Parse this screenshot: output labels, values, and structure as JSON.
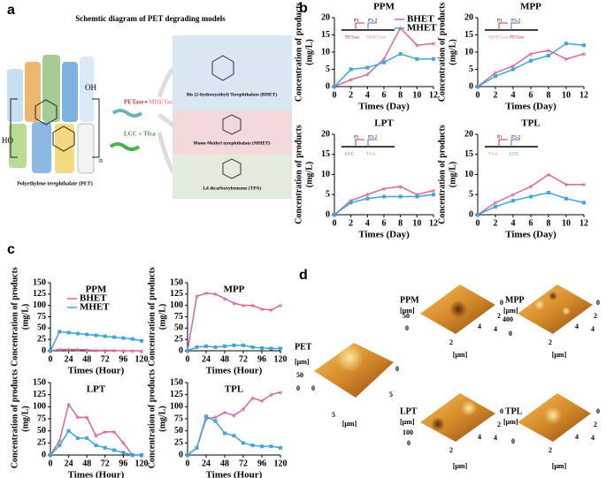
{
  "panel_labels": [
    "a",
    "b",
    "c",
    "d"
  ],
  "diagram": {
    "title": "Schemtic diagram of PET degrading models",
    "pet": "Polyethylene terephthalate (PET)",
    "enzymes_1": [
      "PETase",
      "+",
      "MHETase"
    ],
    "enzymes_2": "LCC + Tfca",
    "oh": "OH",
    "ho": "HO",
    "n": "n",
    "products": [
      "Bis (2-hydroxyethyl) Terephthalate (BHET)",
      "Mono-Methyl terephthalate (MHET)",
      "1,4 dicarboxybenzene (TPA)"
    ]
  },
  "chart_data": [
    {
      "type": "line",
      "title": "PPM",
      "xlabel": "Times (Day)",
      "ylabel": [
        "Concentration of products",
        "(mg/L)"
      ],
      "x": [
        0,
        2,
        4,
        6,
        8,
        10,
        12
      ],
      "xlim": [
        0,
        12
      ],
      "xticks": [
        0,
        2,
        4,
        6,
        8,
        10,
        12
      ],
      "ylim": [
        0,
        20
      ],
      "yticks": [
        0,
        5,
        10,
        15,
        20
      ],
      "legend": "upper right",
      "annotations": [
        "P1",
        "P3-2",
        "PETase",
        "MHETase"
      ],
      "series": [
        {
          "name": "BHET",
          "color": "#d6679a",
          "values": [
            0,
            2,
            3.5,
            8,
            17,
            12,
            12.5
          ]
        },
        {
          "name": "MHET",
          "color": "#3fa6dc",
          "values": [
            0,
            5,
            5.5,
            7,
            9.5,
            8,
            8
          ]
        }
      ]
    },
    {
      "type": "line",
      "title": "MPP",
      "xlabel": "Times (Day)",
      "ylabel": [
        "Concentration of products",
        "(mg/L)"
      ],
      "x": [
        0,
        2,
        4,
        6,
        8,
        10,
        12
      ],
      "xlim": [
        0,
        12
      ],
      "xticks": [
        0,
        2,
        4,
        6,
        8,
        10,
        12
      ],
      "ylim": [
        0,
        20
      ],
      "yticks": [
        0,
        5,
        10,
        15,
        20
      ],
      "annotations": [
        "P1",
        "P3-2",
        "MHETase",
        "PETase"
      ],
      "series": [
        {
          "name": "BHET",
          "color": "#d6679a",
          "values": [
            0,
            4,
            6,
            9.5,
            10.5,
            8,
            9.5
          ]
        },
        {
          "name": "MHET",
          "color": "#3fa6dc",
          "values": [
            0,
            3,
            5,
            7.5,
            9,
            12.5,
            12
          ]
        }
      ]
    },
    {
      "type": "line",
      "title": "LPT",
      "xlabel": "Times (Day)",
      "ylabel": [
        "Concentration of products",
        "(mg/L)"
      ],
      "x": [
        0,
        2,
        4,
        6,
        8,
        10,
        12
      ],
      "xlim": [
        0,
        12
      ],
      "xticks": [
        0,
        2,
        4,
        6,
        8,
        10,
        12
      ],
      "ylim": [
        0,
        20
      ],
      "yticks": [
        0,
        5,
        10,
        15,
        20
      ],
      "annotations": [
        "P1",
        "P3-2",
        "LCC",
        "Tfca"
      ],
      "series": [
        {
          "name": "BHET",
          "color": "#d6679a",
          "values": [
            0,
            3.5,
            5,
            6.5,
            7,
            5,
            6
          ]
        },
        {
          "name": "MHET",
          "color": "#3fa6dc",
          "values": [
            0,
            3,
            4,
            4.5,
            4.5,
            4.5,
            5
          ]
        }
      ]
    },
    {
      "type": "line",
      "title": "TPL",
      "xlabel": "Times (Day)",
      "ylabel": [
        "Concentration of products",
        "(mg/L)"
      ],
      "x": [
        0,
        2,
        4,
        6,
        8,
        10,
        12
      ],
      "xlim": [
        0,
        12
      ],
      "xticks": [
        0,
        2,
        4,
        6,
        8,
        10,
        12
      ],
      "ylim": [
        0,
        20
      ],
      "yticks": [
        0,
        5,
        10,
        15,
        20
      ],
      "annotations": [
        "P1",
        "P3-2",
        "Tfca",
        "LCC"
      ],
      "series": [
        {
          "name": "BHET",
          "color": "#d6679a",
          "values": [
            0,
            3,
            5,
            7,
            10,
            7.5,
            7.5
          ]
        },
        {
          "name": "MHET",
          "color": "#3fa6dc",
          "values": [
            0,
            2,
            3.5,
            4.5,
            5.5,
            4,
            3
          ]
        }
      ]
    },
    {
      "type": "line",
      "title": "PPM",
      "xlabel": "Times (Hour)",
      "ylabel": [
        "Concentration of products",
        "(mg/L)"
      ],
      "x": [
        0,
        12,
        24,
        36,
        48,
        60,
        72,
        84,
        96,
        108,
        120
      ],
      "xlim": [
        0,
        120
      ],
      "xticks": [
        0,
        24,
        48,
        72,
        96,
        120
      ],
      "ylim": [
        0,
        150
      ],
      "yticks": [
        0,
        25,
        50,
        75,
        100,
        125,
        150
      ],
      "legend": "upper right",
      "series": [
        {
          "name": "BHET",
          "color": "#d6679a",
          "values": [
            0,
            3,
            3,
            3,
            2,
            1,
            1,
            1,
            0,
            0,
            0
          ]
        },
        {
          "name": "MHET",
          "color": "#3fa6dc",
          "values": [
            0,
            42,
            40,
            38,
            36,
            34,
            32,
            30,
            28,
            26,
            22
          ]
        }
      ]
    },
    {
      "type": "line",
      "title": "MPP",
      "xlabel": "Times (Hour)",
      "ylabel": [
        "Concentration of products",
        "(mg/L)"
      ],
      "x": [
        0,
        12,
        24,
        36,
        48,
        60,
        72,
        84,
        96,
        108,
        120
      ],
      "xlim": [
        0,
        120
      ],
      "xticks": [
        0,
        24,
        48,
        72,
        96,
        120
      ],
      "ylim": [
        0,
        150
      ],
      "yticks": [
        0,
        25,
        50,
        75,
        100,
        125,
        150
      ],
      "series": [
        {
          "name": "BHET",
          "color": "#d6679a",
          "values": [
            0,
            120,
            127,
            125,
            115,
            105,
            100,
            100,
            92,
            90,
            100
          ]
        },
        {
          "name": "MHET",
          "color": "#3fa6dc",
          "values": [
            0,
            8,
            10,
            8,
            10,
            12,
            12,
            8,
            6,
            5,
            5
          ]
        }
      ]
    },
    {
      "type": "line",
      "title": "LPT",
      "xlabel": "Times (Hour)",
      "ylabel": [
        "Concentration of products",
        "(mg/L)"
      ],
      "x": [
        0,
        12,
        24,
        36,
        48,
        60,
        72,
        84,
        96,
        108,
        120
      ],
      "xlim": [
        0,
        120
      ],
      "xticks": [
        0,
        24,
        48,
        72,
        96,
        120
      ],
      "ylim": [
        0,
        150
      ],
      "yticks": [
        0,
        25,
        50,
        75,
        100,
        125,
        150
      ],
      "series": [
        {
          "name": "BHET",
          "color": "#d6679a",
          "values": [
            0,
            30,
            105,
            78,
            78,
            40,
            48,
            48,
            25,
            0,
            0
          ]
        },
        {
          "name": "MHET",
          "color": "#3fa6dc",
          "values": [
            0,
            20,
            50,
            35,
            35,
            20,
            15,
            10,
            5,
            0,
            0
          ]
        }
      ]
    },
    {
      "type": "line",
      "title": "TPL",
      "xlabel": "Times (Hour)",
      "ylabel": [
        "Concentration of products",
        "(mg/L)"
      ],
      "x": [
        0,
        12,
        24,
        36,
        48,
        60,
        72,
        84,
        96,
        108,
        120
      ],
      "xlim": [
        0,
        120
      ],
      "xticks": [
        0,
        24,
        48,
        72,
        96,
        120
      ],
      "ylim": [
        0,
        150
      ],
      "yticks": [
        0,
        25,
        50,
        75,
        100,
        125,
        150
      ],
      "series": [
        {
          "name": "BHET",
          "color": "#d6679a",
          "values": [
            0,
            15,
            75,
            78,
            88,
            82,
            95,
            118,
            112,
            125,
            130
          ]
        },
        {
          "name": "MHET",
          "color": "#3fa6dc",
          "values": [
            0,
            15,
            80,
            70,
            45,
            40,
            25,
            20,
            18,
            18,
            15
          ]
        }
      ]
    }
  ],
  "afm": {
    "unit": "[μm]",
    "plots": [
      {
        "name": "PET",
        "zticks": [
          "50",
          "0"
        ],
        "xticks": [
          "5",
          "0"
        ],
        "yticks": [
          "0",
          "5"
        ]
      },
      {
        "name": "PPM",
        "zticks": [
          "50",
          "0"
        ],
        "xticks": [
          "2",
          "4"
        ],
        "yticks": [
          "0",
          "2",
          "4"
        ]
      },
      {
        "name": "MPP",
        "zticks": [
          "400",
          "0"
        ],
        "xticks": [
          "2",
          "4"
        ],
        "yticks": [
          "0",
          "2",
          "4"
        ]
      },
      {
        "name": "LPT",
        "zticks": [
          "100",
          "0"
        ],
        "xticks": [
          "2",
          "4"
        ],
        "yticks": [
          "0",
          "2",
          "4"
        ]
      },
      {
        "name": "TPL",
        "zticks": [
          "0"
        ],
        "xticks": [
          "2",
          "4"
        ],
        "yticks": [
          "0",
          "2",
          "4"
        ]
      }
    ]
  }
}
